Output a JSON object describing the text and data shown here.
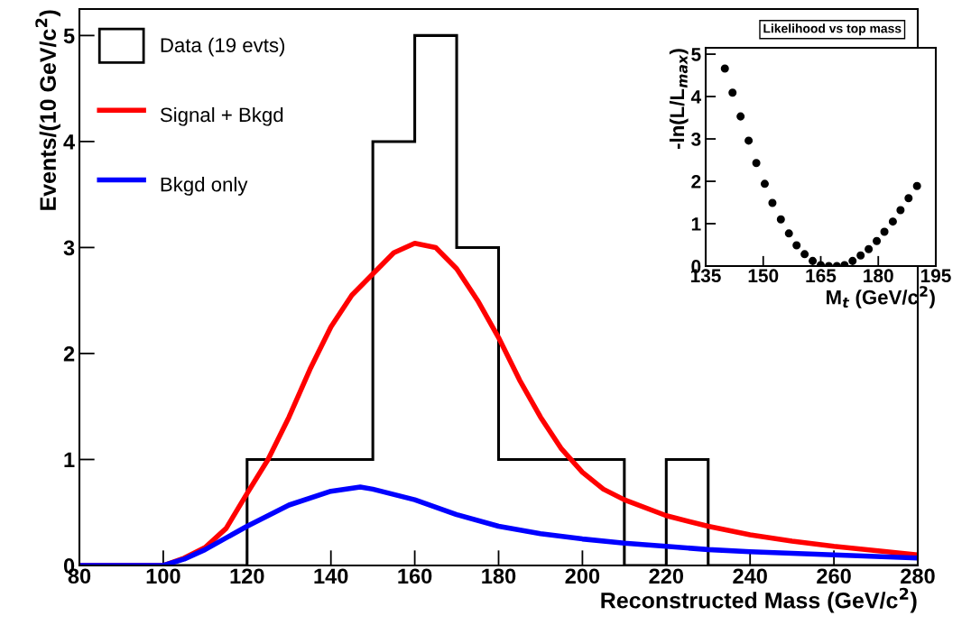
{
  "chart_data": [
    {
      "type": "histogram",
      "xlabel": "Reconstructed Mass (GeV/c$^{2}$)",
      "ylabel": "Events/(10 GeV/c$^{2}$)",
      "xlim": [
        80,
        280
      ],
      "ylim": [
        0,
        5.25
      ],
      "xticks": [
        80,
        100,
        120,
        140,
        160,
        180,
        200,
        220,
        240,
        260,
        280
      ],
      "yticks": [
        0,
        1,
        2,
        3,
        4,
        5
      ],
      "legend": "top left",
      "grid": false,
      "series": [
        {
          "name": "Data (19 evts)",
          "color": "#000000",
          "bins": [
            80,
            90,
            100,
            110,
            120,
            130,
            140,
            150,
            160,
            170,
            180,
            190,
            200,
            210,
            220,
            230,
            240,
            250,
            260,
            270,
            280
          ],
          "values": [
            0,
            0,
            0,
            0,
            1,
            1,
            1,
            4,
            5,
            3,
            1,
            1,
            1,
            0,
            1,
            0,
            0,
            0,
            0,
            0
          ]
        },
        {
          "name": "Signal + Bkgd",
          "type": "line",
          "color": "#ff0000",
          "x": [
            80,
            100,
            105,
            110,
            115,
            120,
            125,
            130,
            135,
            140,
            145,
            150,
            155,
            160,
            165,
            170,
            175,
            180,
            185,
            190,
            195,
            200,
            205,
            210,
            220,
            230,
            240,
            250,
            260,
            270,
            280
          ],
          "values": [
            0,
            0,
            0.07,
            0.17,
            0.35,
            0.68,
            1.0,
            1.4,
            1.85,
            2.25,
            2.55,
            2.75,
            2.95,
            3.04,
            3.0,
            2.8,
            2.5,
            2.15,
            1.75,
            1.4,
            1.1,
            0.88,
            0.72,
            0.62,
            0.47,
            0.37,
            0.29,
            0.23,
            0.18,
            0.14,
            0.1
          ]
        },
        {
          "name": "Bkgd only",
          "type": "line",
          "color": "#0000ff",
          "x": [
            80,
            100,
            105,
            110,
            120,
            130,
            140,
            147,
            150,
            160,
            170,
            180,
            190,
            200,
            210,
            220,
            230,
            240,
            260,
            280
          ],
          "values": [
            0,
            0,
            0.06,
            0.15,
            0.37,
            0.57,
            0.7,
            0.74,
            0.72,
            0.62,
            0.48,
            0.37,
            0.3,
            0.25,
            0.21,
            0.18,
            0.15,
            0.13,
            0.1,
            0.07
          ]
        }
      ]
    },
    {
      "type": "scatter",
      "title": "Likelihood vs top mass",
      "xlabel": "M$_{t}$ (GeV/c$^{2}$)",
      "ylabel": "-ln(L/L$_{max}$)",
      "xlim": [
        135,
        195
      ],
      "ylim": [
        0,
        5.15
      ],
      "xticks": [
        135,
        150,
        165,
        180,
        195
      ],
      "yticks": [
        0,
        1,
        2,
        3,
        4,
        5
      ],
      "marker": "circle",
      "grid": false,
      "series": [
        {
          "color": "#000000",
          "x": [
            140.0,
            142.0,
            144.1,
            146.2,
            148.2,
            150.4,
            152.4,
            154.6,
            156.7,
            158.7,
            160.8,
            162.9,
            165.0,
            167.1,
            169.2,
            171.2,
            173.3,
            175.4,
            177.5,
            179.6,
            181.6,
            183.8,
            185.8,
            187.9,
            190.1
          ],
          "values": [
            4.66,
            4.09,
            3.53,
            2.96,
            2.43,
            1.94,
            1.49,
            1.1,
            0.77,
            0.49,
            0.28,
            0.12,
            0.02,
            0,
            0,
            0.02,
            0.12,
            0.25,
            0.4,
            0.59,
            0.81,
            1.05,
            1.32,
            1.6,
            1.89
          ]
        }
      ]
    }
  ]
}
